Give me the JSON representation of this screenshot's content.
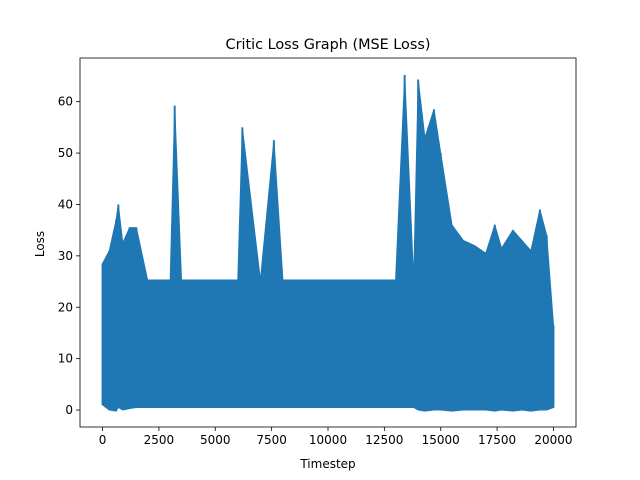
{
  "chart_data": {
    "type": "line",
    "title": "Critic Loss Graph (MSE Loss)",
    "xlabel": "Timestep",
    "ylabel": "Loss",
    "xlim": [
      -1000,
      21000
    ],
    "ylim": [
      -3.3,
      68.5
    ],
    "xticks": [
      0,
      2500,
      5000,
      7500,
      10000,
      12500,
      15000,
      17500,
      20000
    ],
    "xtick_labels": [
      "0",
      "2500",
      "5000",
      "7500",
      "10000",
      "12500",
      "15000",
      "17500",
      "20000"
    ],
    "yticks": [
      0,
      10,
      20,
      30,
      40,
      50,
      60
    ],
    "ytick_labels": [
      "0",
      "10",
      "20",
      "30",
      "40",
      "50",
      "60"
    ],
    "grid": false,
    "legend": "none",
    "color": "#1f77b4",
    "series": [
      {
        "x": [
          0,
          300,
          600,
          700,
          900,
          1200,
          1500,
          2000,
          2500,
          3000,
          3200,
          3500,
          4000,
          5000,
          6000,
          6200,
          7000,
          7600,
          8000,
          9000,
          10000,
          11000,
          12000,
          13000,
          13400,
          13800,
          14000,
          14300,
          14700,
          15000,
          15500,
          16000,
          16500,
          17000,
          17400,
          17700,
          18200,
          18600,
          19000,
          19400,
          19700,
          20000
        ],
        "upper": [
          28.5,
          31.0,
          37.0,
          40.0,
          32.5,
          35.5,
          35.5,
          25.3,
          25.3,
          25.3,
          59.2,
          25.3,
          25.3,
          25.3,
          25.3,
          55.0,
          25.3,
          52.5,
          25.3,
          25.3,
          25.3,
          25.3,
          25.3,
          25.3,
          65.2,
          25.3,
          64.3,
          53.0,
          58.5,
          50.0,
          36.0,
          33.0,
          32.0,
          30.5,
          36.0,
          31.5,
          35.0,
          33.0,
          31.0,
          39.0,
          34.0,
          16.5
        ],
        "lower": [
          1.0,
          0.0,
          -0.2,
          0.5,
          0.0,
          0.3,
          0.5,
          0.5,
          0.5,
          0.5,
          0.5,
          0.5,
          0.5,
          0.5,
          0.5,
          0.5,
          0.5,
          0.5,
          0.5,
          0.5,
          0.5,
          0.5,
          0.5,
          0.5,
          0.5,
          0.5,
          0.0,
          -0.2,
          0.0,
          0.0,
          -0.2,
          0.0,
          0.0,
          0.0,
          -0.2,
          0.0,
          -0.2,
          0.0,
          -0.2,
          0.0,
          0.0,
          0.5
        ]
      }
    ]
  }
}
